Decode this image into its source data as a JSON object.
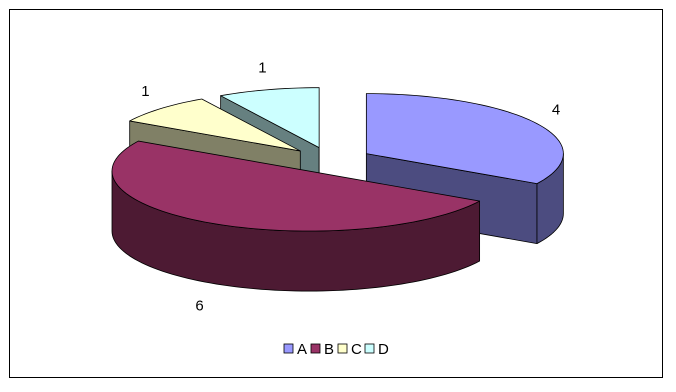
{
  "chart_data": {
    "type": "pie",
    "style": "3d-exploded",
    "categories": [
      "A",
      "B",
      "C",
      "D"
    ],
    "values": [
      4,
      6,
      1,
      1
    ],
    "data_labels": [
      "4",
      "6",
      "1",
      "1"
    ],
    "title": "",
    "legend": {
      "placement": "bottom",
      "entries": [
        "A",
        "B",
        "C",
        "D"
      ]
    },
    "colors": {
      "A": {
        "top": "#9999ff",
        "side": "#4c4c80"
      },
      "B": {
        "top": "#993366",
        "side": "#4d1a33"
      },
      "C": {
        "top": "#ffffcc",
        "side": "#808066"
      },
      "D": {
        "top": "#ccffff",
        "side": "#668080"
      }
    }
  }
}
